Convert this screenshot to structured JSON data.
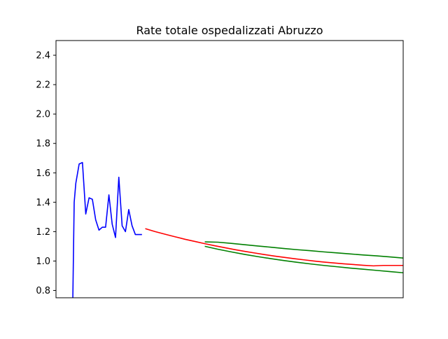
{
  "chart_data": {
    "type": "line",
    "title": "Rate totale ospedalizzati Abruzzo",
    "xlabel": "",
    "ylabel": "",
    "ylim": [
      0.75,
      2.5
    ],
    "xlim": [
      -5,
      100
    ],
    "x_tick_labels_shown": false,
    "y_ticks": [
      0.8,
      1.0,
      1.2,
      1.4,
      1.6,
      1.8,
      2.0,
      2.2,
      2.4
    ],
    "y_tick_labels": [
      "0.8",
      "1.0",
      "1.2",
      "1.4",
      "1.6",
      "1.8",
      "2.0",
      "2.2",
      "2.4"
    ],
    "grid": false,
    "legend": "none",
    "series": [
      {
        "color": "#0000ff",
        "x": [
          0,
          0.5,
          1,
          2,
          3,
          4,
          5,
          6,
          7,
          8,
          9,
          10,
          11,
          12,
          13,
          14,
          15,
          16,
          17,
          18,
          19,
          20,
          21
        ],
        "y": [
          0.6,
          1.4,
          1.53,
          1.66,
          1.67,
          1.32,
          1.43,
          1.42,
          1.28,
          1.21,
          1.23,
          1.23,
          1.45,
          1.25,
          1.16,
          1.57,
          1.24,
          1.2,
          1.35,
          1.24,
          1.18,
          1.18,
          1.18
        ]
      },
      {
        "color": "#ff0000",
        "x": [
          22,
          25,
          28,
          31,
          34,
          37,
          40,
          43,
          46,
          49,
          52,
          55,
          58,
          61,
          64,
          67,
          70,
          73,
          76,
          79,
          82,
          85,
          88,
          91,
          94,
          97,
          100
        ],
        "y": [
          1.22,
          1.2,
          1.182,
          1.165,
          1.148,
          1.133,
          1.118,
          1.104,
          1.091,
          1.078,
          1.066,
          1.055,
          1.044,
          1.034,
          1.025,
          1.016,
          1.008,
          1.0,
          0.993,
          0.987,
          0.981,
          0.976,
          0.971,
          0.967,
          0.97,
          0.97,
          0.97
        ]
      },
      {
        "color": "#008000",
        "x": [
          40,
          44,
          48,
          52,
          56,
          60,
          64,
          68,
          72,
          76,
          80,
          84,
          88,
          92,
          96,
          100
        ],
        "y": [
          1.13,
          1.128,
          1.12,
          1.111,
          1.102,
          1.094,
          1.085,
          1.077,
          1.07,
          1.062,
          1.055,
          1.048,
          1.041,
          1.035,
          1.028,
          1.02
        ]
      },
      {
        "color": "#008000",
        "x": [
          40,
          44,
          48,
          52,
          56,
          60,
          64,
          68,
          72,
          76,
          80,
          84,
          88,
          92,
          96,
          100
        ],
        "y": [
          1.1,
          1.08,
          1.062,
          1.045,
          1.03,
          1.016,
          1.003,
          0.991,
          0.98,
          0.97,
          0.961,
          0.952,
          0.944,
          0.936,
          0.928,
          0.92
        ]
      }
    ]
  }
}
